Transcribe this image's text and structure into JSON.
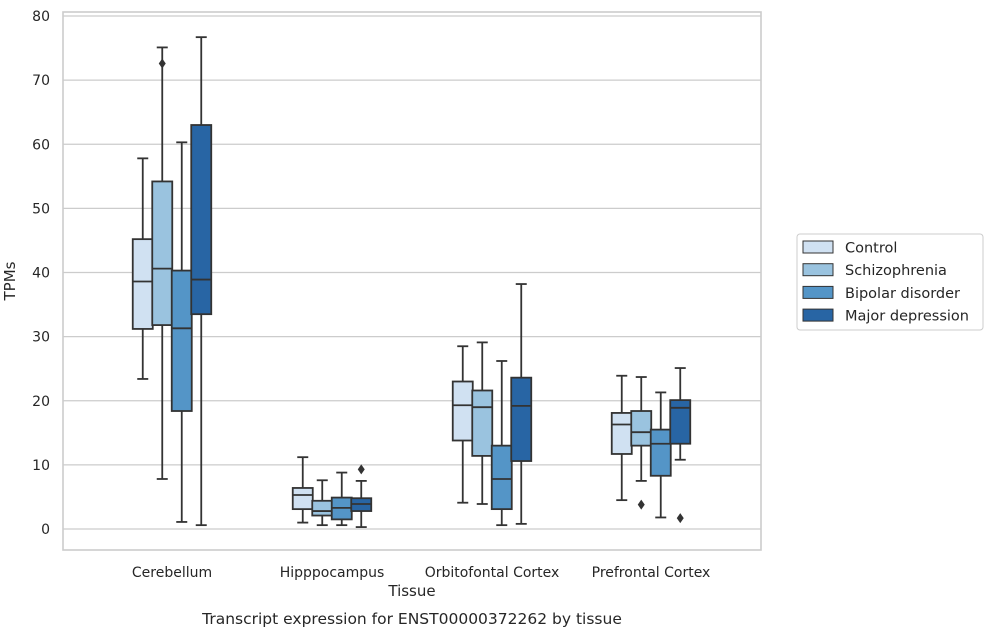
{
  "chart_data": {
    "type": "box",
    "title": "",
    "caption": "Transcript expression for ENST00000372262 by tissue",
    "xlabel": "Tissue",
    "ylabel": "TPMs",
    "ylim": [
      -3,
      81
    ],
    "yticks": [
      0,
      10,
      20,
      30,
      40,
      50,
      60,
      70,
      80
    ],
    "grid": "horizontal",
    "legend_position": "right",
    "categories": [
      "Cerebellum",
      "Hipppocampus",
      "Orbitofontal Cortex",
      "Prefrontal Cortex"
    ],
    "series": [
      {
        "name": "Control",
        "color": "#d0e1f2",
        "boxes": [
          {
            "whislo": 23.4,
            "q1": 31.2,
            "med": 38.6,
            "q3": 45.2,
            "whishi": 57.8,
            "fliers": []
          },
          {
            "whislo": 1.0,
            "q1": 3.1,
            "med": 5.3,
            "q3": 6.4,
            "whishi": 11.2,
            "fliers": []
          },
          {
            "whislo": 4.1,
            "q1": 13.8,
            "med": 19.3,
            "q3": 23.0,
            "whishi": 28.5,
            "fliers": []
          },
          {
            "whislo": 4.5,
            "q1": 11.7,
            "med": 16.3,
            "q3": 18.1,
            "whishi": 23.9,
            "fliers": []
          }
        ]
      },
      {
        "name": "Schizophrenia",
        "color": "#9ac3df",
        "boxes": [
          {
            "whislo": 7.8,
            "q1": 31.8,
            "med": 40.6,
            "q3": 54.2,
            "whishi": 75.1,
            "fliers": [
              72.6
            ]
          },
          {
            "whislo": 0.6,
            "q1": 2.1,
            "med": 2.8,
            "q3": 4.4,
            "whishi": 7.6,
            "fliers": []
          },
          {
            "whislo": 3.9,
            "q1": 11.4,
            "med": 19.0,
            "q3": 21.6,
            "whishi": 29.1,
            "fliers": []
          },
          {
            "whislo": 7.5,
            "q1": 13.0,
            "med": 15.1,
            "q3": 18.4,
            "whishi": 23.7,
            "fliers": [
              3.8
            ]
          }
        ]
      },
      {
        "name": "Bipolar disorder",
        "color": "#5495c7",
        "boxes": [
          {
            "whislo": 1.1,
            "q1": 18.4,
            "med": 31.3,
            "q3": 40.3,
            "whishi": 60.3,
            "fliers": []
          },
          {
            "whislo": 0.6,
            "q1": 1.5,
            "med": 3.3,
            "q3": 4.9,
            "whishi": 8.8,
            "fliers": []
          },
          {
            "whislo": 0.6,
            "q1": 3.1,
            "med": 7.8,
            "q3": 13.0,
            "whishi": 26.2,
            "fliers": []
          },
          {
            "whislo": 1.8,
            "q1": 8.3,
            "med": 13.3,
            "q3": 15.5,
            "whishi": 21.3,
            "fliers": []
          }
        ]
      },
      {
        "name": "Major depression",
        "color": "#2865a4",
        "boxes": [
          {
            "whislo": 0.6,
            "q1": 33.5,
            "med": 38.9,
            "q3": 63.0,
            "whishi": 76.7,
            "fliers": []
          },
          {
            "whislo": 0.3,
            "q1": 2.8,
            "med": 3.9,
            "q3": 4.8,
            "whishi": 7.5,
            "fliers": [
              9.3
            ]
          },
          {
            "whislo": 0.8,
            "q1": 10.6,
            "med": 19.2,
            "q3": 23.6,
            "whishi": 38.2,
            "fliers": []
          },
          {
            "whislo": 10.8,
            "q1": 13.3,
            "med": 18.9,
            "q3": 20.1,
            "whishi": 25.1,
            "fliers": [
              1.7
            ]
          }
        ]
      }
    ]
  }
}
